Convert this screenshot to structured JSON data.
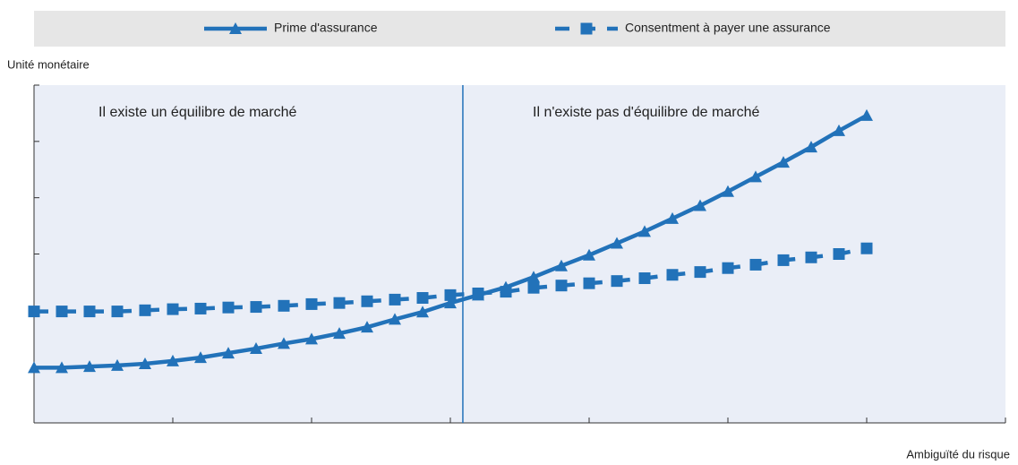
{
  "chart_data": {
    "type": "line",
    "ylabel": "Unité monétaire",
    "xlabel": "Ambiguïté du risque",
    "annotations": [
      "Il existe un équilibre de marché",
      "Il n'existe pas d'équilibre de marché"
    ],
    "vline": 3.09,
    "x": [
      0,
      0.2,
      0.4,
      0.6,
      0.8,
      1,
      1.2,
      1.4,
      1.6,
      1.8,
      2,
      2.2,
      2.4,
      2.6,
      2.8,
      3,
      3.2,
      3.4,
      3.6,
      3.8,
      4,
      4.2,
      4.4,
      4.6,
      4.8,
      5,
      5.2,
      5.4,
      5.6,
      5.8,
      6
    ],
    "series": [
      {
        "name": "Prime d'assurance",
        "color": "#2272b9",
        "marker": "triangle",
        "dash": false,
        "values": [
          0.98,
          0.98,
          1.0,
          1.02,
          1.05,
          1.1,
          1.16,
          1.24,
          1.32,
          1.41,
          1.49,
          1.59,
          1.7,
          1.84,
          1.97,
          2.13,
          2.27,
          2.41,
          2.59,
          2.79,
          2.98,
          3.19,
          3.4,
          3.63,
          3.86,
          4.11,
          4.37,
          4.63,
          4.9,
          5.19,
          5.46
        ]
      },
      {
        "name": "Consentment à payer une assurance",
        "color": "#2272b9",
        "marker": "square",
        "dash": true,
        "values": [
          1.98,
          1.98,
          1.98,
          1.98,
          2.0,
          2.02,
          2.03,
          2.05,
          2.06,
          2.08,
          2.11,
          2.13,
          2.16,
          2.19,
          2.22,
          2.27,
          2.3,
          2.33,
          2.4,
          2.44,
          2.48,
          2.52,
          2.57,
          2.63,
          2.68,
          2.75,
          2.81,
          2.89,
          2.94,
          3.0,
          3.1
        ]
      }
    ],
    "xlim": [
      0,
      7
    ],
    "xticks": [
      0,
      1,
      2,
      3,
      4,
      5,
      6,
      7
    ],
    "ylim": [
      0,
      6
    ],
    "yticks": [
      0,
      1,
      2,
      3,
      4,
      5,
      6
    ]
  }
}
